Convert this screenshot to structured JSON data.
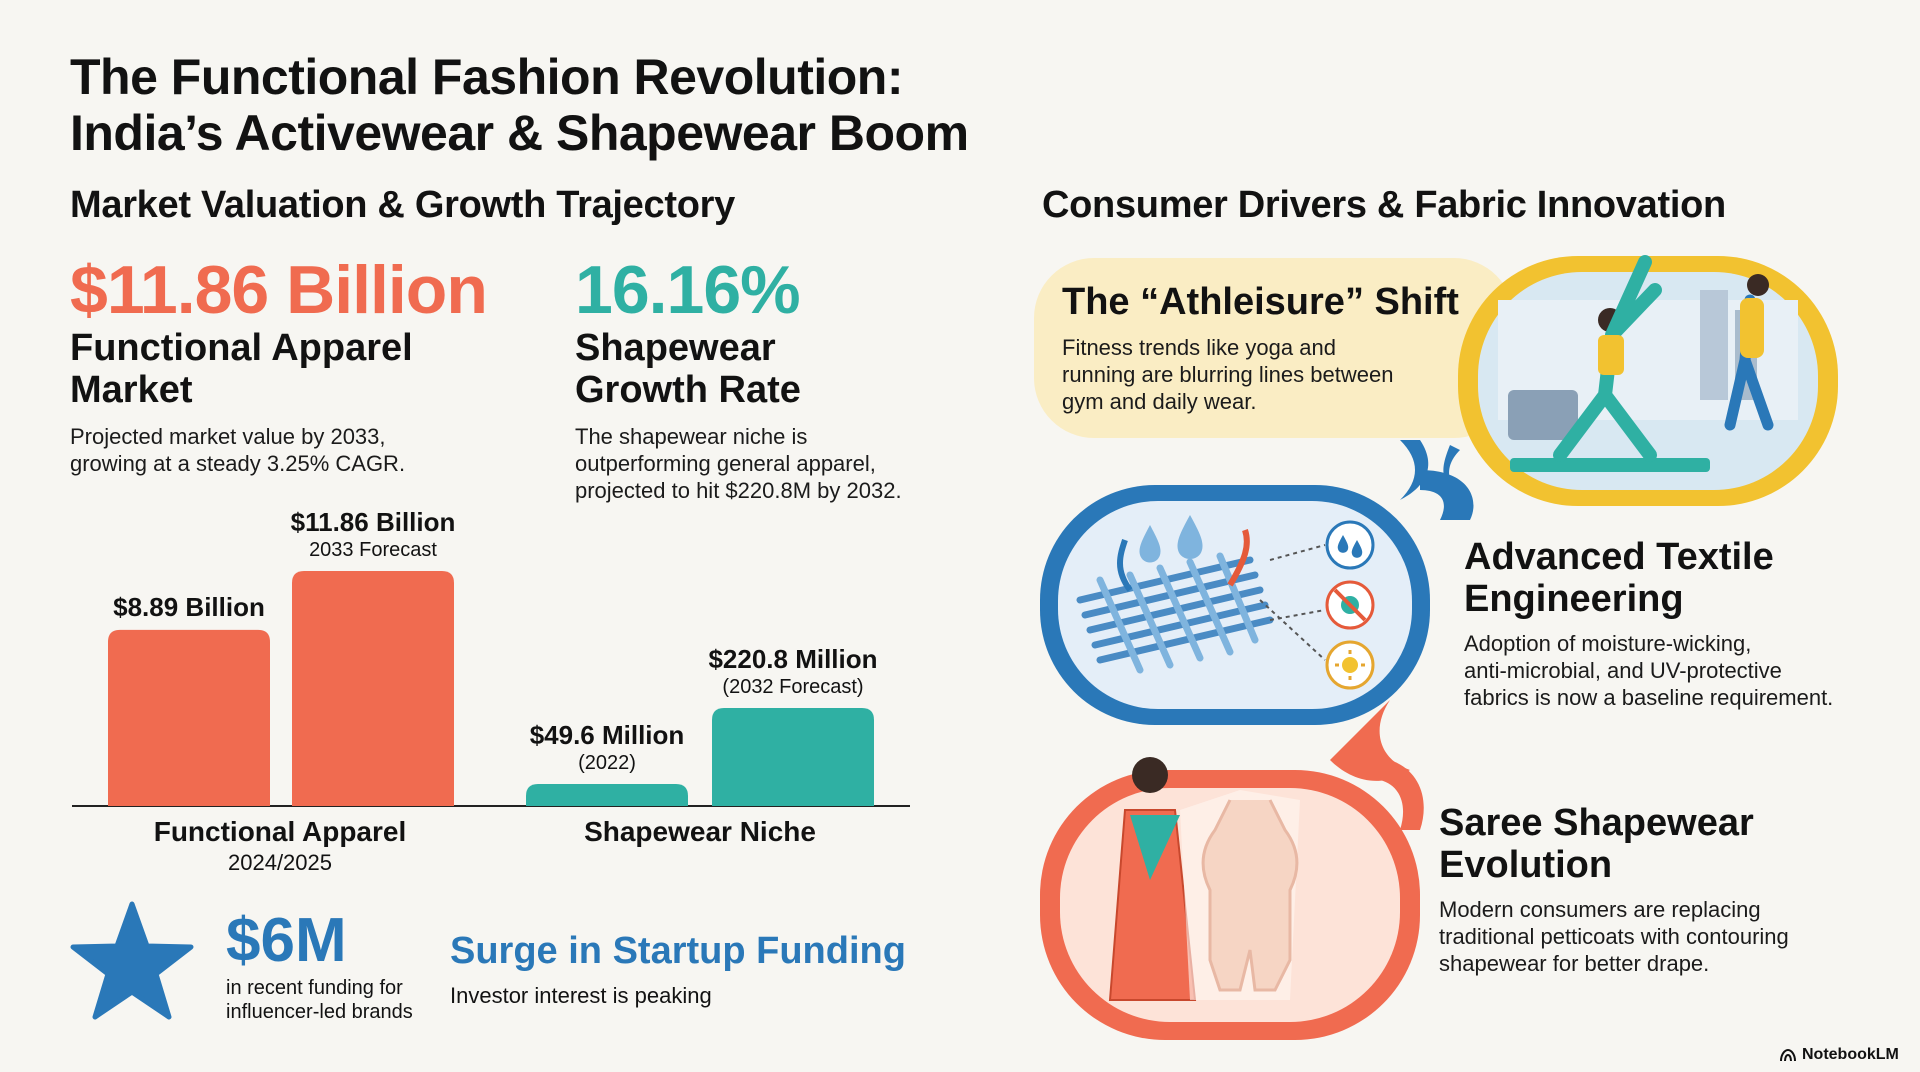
{
  "title": {
    "line1": "The Functional Fashion Revolution:",
    "line2": "India’s Activewear & Shapewear Boom"
  },
  "left": {
    "heading": "Market Valuation & Growth Trajectory",
    "stat1": {
      "value": "$11.86 Billion",
      "label_line1": "Functional Apparel",
      "label_line2": "Market",
      "desc_line1": "Projected market value by 2033,",
      "desc_line2": "growing at a steady 3.25% CAGR."
    },
    "stat2": {
      "value": "16.16%",
      "label_line1": "Shapewear",
      "label_line2": "Growth Rate",
      "desc_line1": "The shapewear niche is",
      "desc_line2": "outperforming general apparel,",
      "desc_line3": "projected to hit $220.8M by 2032."
    },
    "funding": {
      "value": "$6M",
      "desc_line1": "in recent funding for",
      "desc_line2": "influencer-led brands",
      "title": "Surge in Startup Funding",
      "subtitle": "Investor interest is peaking"
    }
  },
  "chart_data": {
    "type": "bar",
    "groups": [
      {
        "name": "Functional Apparel",
        "sublabel": "2024/2025",
        "unit": "billion USD",
        "bars": [
          {
            "value": 8.89,
            "label": "$8.89 Billion",
            "sublabel": ""
          },
          {
            "value": 11.86,
            "label": "$11.86 Billion",
            "sublabel": "2033 Forecast"
          }
        ]
      },
      {
        "name": "Shapewear Niche",
        "sublabel": "",
        "unit": "million USD",
        "bars": [
          {
            "value": 49.6,
            "label": "$49.6 Million",
            "sublabel": "(2022)"
          },
          {
            "value": 220.8,
            "label": "$220.8 Million",
            "sublabel": "(2032 Forecast)"
          }
        ]
      }
    ],
    "colors": {
      "apparel": "#f06b50",
      "shapewear": "#2fb0a3"
    }
  },
  "right": {
    "heading": "Consumer Drivers & Fabric Innovation",
    "card1": {
      "title": "The “Athleisure” Shift",
      "body_line1": "Fitness trends like yoga and",
      "body_line2": "running are blurring lines between",
      "body_line3": "gym and daily wear."
    },
    "card2": {
      "title_line1": "Advanced Textile",
      "title_line2": "Engineering",
      "body_line1": "Adoption of moisture-wicking,",
      "body_line2": "anti-microbial, and UV-protective",
      "body_line3": "fabrics is now a baseline requirement."
    },
    "card3": {
      "title_line1": "Saree Shapewear",
      "title_line2": "Evolution",
      "body_line1": "Modern consumers are replacing",
      "body_line2": "traditional petticoats with contouring",
      "body_line3": "shapewear for better drape."
    }
  },
  "footer": {
    "brand": "NotebookLM"
  },
  "colors": {
    "coral": "#f06b50",
    "teal": "#2fb0a3",
    "blue": "#2a78b8",
    "yellow": "#f2c230",
    "cream": "#faedc4",
    "pink": "#fde3d8",
    "light_blue": "#e4eef8"
  },
  "icons": [
    "star-icon",
    "water-drop-icon",
    "anti-microbial-icon",
    "uv-sun-icon",
    "notebooklm-logo-icon"
  ]
}
